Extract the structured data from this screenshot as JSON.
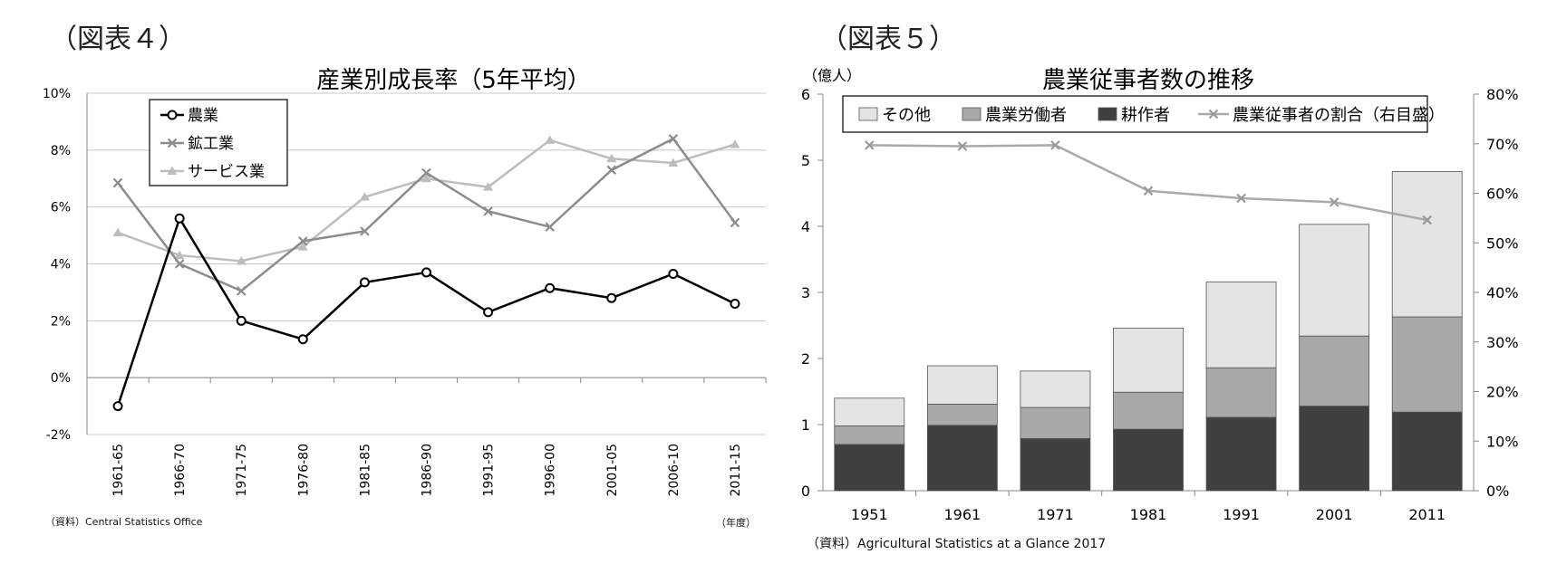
{
  "figure4": {
    "label": "（図表４）",
    "source": "（資料）Central Statistics Office",
    "x_unit": "（年度）",
    "chart_data": {
      "type": "line",
      "title": "産業別成長率（5年平均）",
      "categories": [
        "1961-65",
        "1966-70",
        "1971-75",
        "1976-80",
        "1981-85",
        "1986-90",
        "1991-95",
        "1996-00",
        "2001-05",
        "2006-10",
        "2011-15"
      ],
      "y_ticks": [
        "-2%",
        "0%",
        "2%",
        "4%",
        "6%",
        "8%",
        "10%"
      ],
      "ylim": [
        -2,
        10
      ],
      "grid": true,
      "legend_position": "top-left",
      "series": [
        {
          "name": "農業",
          "color": "#000000",
          "marker": "circle",
          "values": [
            -1.0,
            5.6,
            2.0,
            1.35,
            3.35,
            3.7,
            2.3,
            3.15,
            2.8,
            3.65,
            2.6
          ]
        },
        {
          "name": "鉱工業",
          "color": "#8c8c8c",
          "marker": "x",
          "values": [
            6.85,
            4.0,
            3.05,
            4.8,
            5.15,
            7.2,
            5.85,
            5.3,
            7.3,
            8.4,
            5.45
          ]
        },
        {
          "name": "サービス業",
          "color": "#bdbdbd",
          "marker": "triangle",
          "values": [
            5.1,
            4.3,
            4.1,
            4.6,
            6.35,
            7.0,
            6.7,
            8.35,
            7.7,
            7.55,
            8.2
          ]
        }
      ]
    }
  },
  "figure5": {
    "label": "（図表５）",
    "source": "（資料）Agricultural Statistics at a Glance 2017",
    "y_unit": "（億人）",
    "chart_data": {
      "type": "bar",
      "stacked": true,
      "title": "農業従事者数の推移",
      "categories": [
        "1951",
        "1961",
        "1971",
        "1981",
        "1991",
        "2001",
        "2011"
      ],
      "y_ticks": [
        "0",
        "1",
        "2",
        "3",
        "4",
        "5",
        "6"
      ],
      "y2_ticks": [
        "0%",
        "10%",
        "20%",
        "30%",
        "40%",
        "50%",
        "60%",
        "70%",
        "80%"
      ],
      "ylim": [
        0,
        6
      ],
      "y2lim": [
        0,
        80
      ],
      "legend_position": "top",
      "series": [
        {
          "name": "耕作者",
          "color": "#404040",
          "values": [
            0.7,
            0.99,
            0.79,
            0.93,
            1.11,
            1.28,
            1.19
          ]
        },
        {
          "name": "農業労働者",
          "color": "#a9a9a9",
          "values": [
            0.28,
            0.32,
            0.47,
            0.56,
            0.75,
            1.06,
            1.44
          ]
        },
        {
          "name": "その他",
          "color": "#e4e4e4",
          "values": [
            0.42,
            0.58,
            0.55,
            0.97,
            1.3,
            1.69,
            2.2
          ]
        }
      ],
      "line_series": {
        "name": "農業従事者の割合（右目盛）",
        "color": "#a9a9a9",
        "marker": "x",
        "values": [
          69.7,
          69.5,
          69.7,
          60.5,
          59.0,
          58.2,
          54.6
        ]
      },
      "legend_order": [
        "その他",
        "農業労働者",
        "耕作者",
        "農業従事者の割合（右目盛）"
      ]
    }
  }
}
